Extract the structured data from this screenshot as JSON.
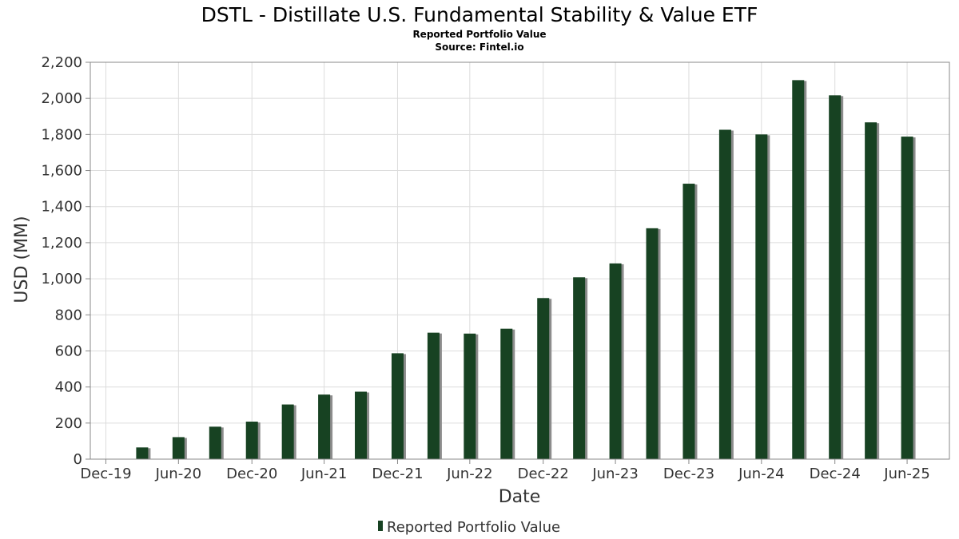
{
  "colors": {
    "bar": "#174222",
    "bar_shadow": "#8c8c8c",
    "grid": "#dcdcdc",
    "axis": "#888888",
    "background": "#ffffff"
  },
  "chart_data": {
    "type": "bar",
    "title": "DSTL - Distillate U.S. Fundamental Stability & Value ETF",
    "subtitle": "Reported Portfolio Value",
    "source": "Source: Fintel.io",
    "xlabel": "Date",
    "ylabel": "USD (MM)",
    "ylim": [
      0,
      2200
    ],
    "yticks": [
      0,
      200,
      400,
      600,
      800,
      1000,
      1200,
      1400,
      1600,
      1800,
      2000,
      2200
    ],
    "ytick_labels": [
      "0",
      "200",
      "400",
      "600",
      "800",
      "1,000",
      "1,200",
      "1,400",
      "1,600",
      "1,800",
      "2,000",
      "2,200"
    ],
    "xlim": [
      "2019-11-22",
      "2025-10-14"
    ],
    "xticks": [
      {
        "date": "2019-12-31",
        "label": "Dec-19"
      },
      {
        "date": "2020-06-30",
        "label": "Jun-20"
      },
      {
        "date": "2020-12-31",
        "label": "Dec-20"
      },
      {
        "date": "2021-06-30",
        "label": "Jun-21"
      },
      {
        "date": "2021-12-31",
        "label": "Dec-21"
      },
      {
        "date": "2022-06-30",
        "label": "Jun-22"
      },
      {
        "date": "2022-12-31",
        "label": "Dec-22"
      },
      {
        "date": "2023-06-30",
        "label": "Jun-23"
      },
      {
        "date": "2023-12-31",
        "label": "Dec-23"
      },
      {
        "date": "2024-06-30",
        "label": "Jun-24"
      },
      {
        "date": "2024-12-31",
        "label": "Dec-24"
      },
      {
        "date": "2025-06-30",
        "label": "Jun-25"
      }
    ],
    "grid": true,
    "legend": "bottom",
    "series": [
      {
        "name": "Reported Portfolio Value",
        "x": [
          "2020-03-31",
          "2020-06-30",
          "2020-09-30",
          "2020-12-31",
          "2021-03-31",
          "2021-06-30",
          "2021-09-30",
          "2021-12-31",
          "2022-03-31",
          "2022-06-30",
          "2022-09-30",
          "2022-12-31",
          "2023-03-31",
          "2023-06-30",
          "2023-09-30",
          "2023-12-31",
          "2024-03-31",
          "2024-06-30",
          "2024-09-30",
          "2024-12-31",
          "2025-03-31",
          "2025-06-30"
        ],
        "values": [
          65,
          122,
          180,
          208,
          303,
          358,
          374,
          587,
          701,
          696,
          723,
          893,
          1008,
          1085,
          1280,
          1527,
          1826,
          1800,
          2101,
          2017,
          1867,
          1788
        ]
      }
    ]
  }
}
